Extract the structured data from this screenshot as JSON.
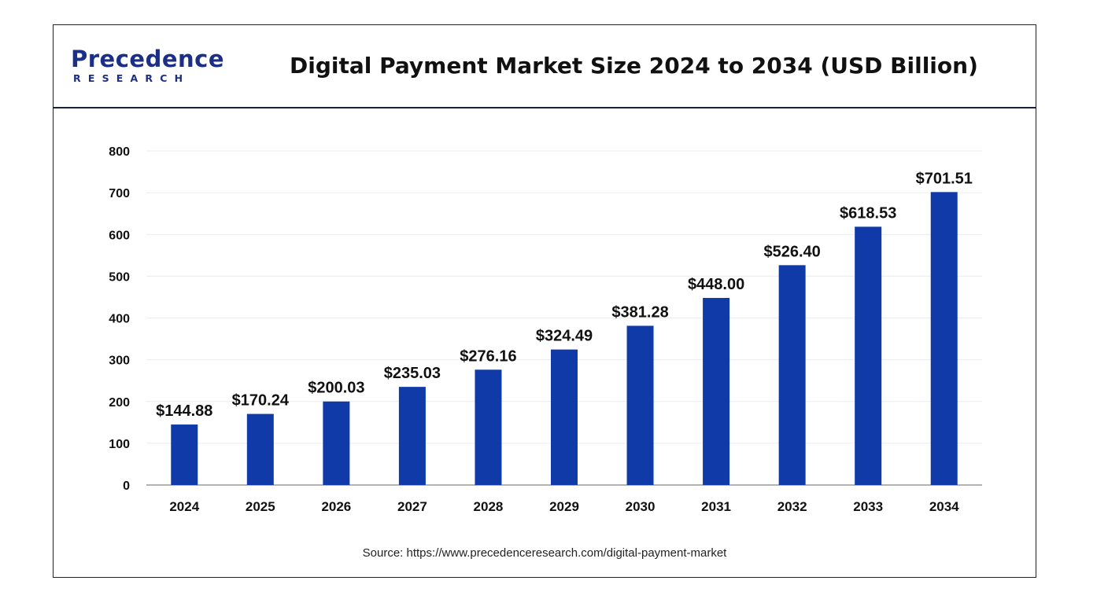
{
  "logo": {
    "word": "Precedence",
    "sub": "RESEARCH",
    "color": "#1c2f86"
  },
  "title": "Digital Payment Market Size 2024 to 2034 (USD Billion)",
  "source": "Source: https://www.precedenceresearch.com/digital-payment-market",
  "chart_data": {
    "type": "bar",
    "categories": [
      "2024",
      "2025",
      "2026",
      "2027",
      "2028",
      "2029",
      "2030",
      "2031",
      "2032",
      "2033",
      "2034"
    ],
    "values": [
      144.88,
      170.24,
      200.03,
      235.03,
      276.16,
      324.49,
      381.28,
      448.0,
      526.4,
      618.53,
      701.51
    ],
    "data_labels": [
      "$144.88",
      "$170.24",
      "$200.03",
      "$235.03",
      "$276.16",
      "$324.49",
      "$381.28",
      "$448.00",
      "$526.40",
      "$618.53",
      "$701.51"
    ],
    "yticks": [
      0,
      100,
      200,
      300,
      400,
      500,
      600,
      700,
      800
    ],
    "ylim": [
      0,
      800
    ],
    "xlabel": "",
    "ylabel": "",
    "bar_color": "#0f3aa8",
    "grid": true,
    "legend": false
  }
}
